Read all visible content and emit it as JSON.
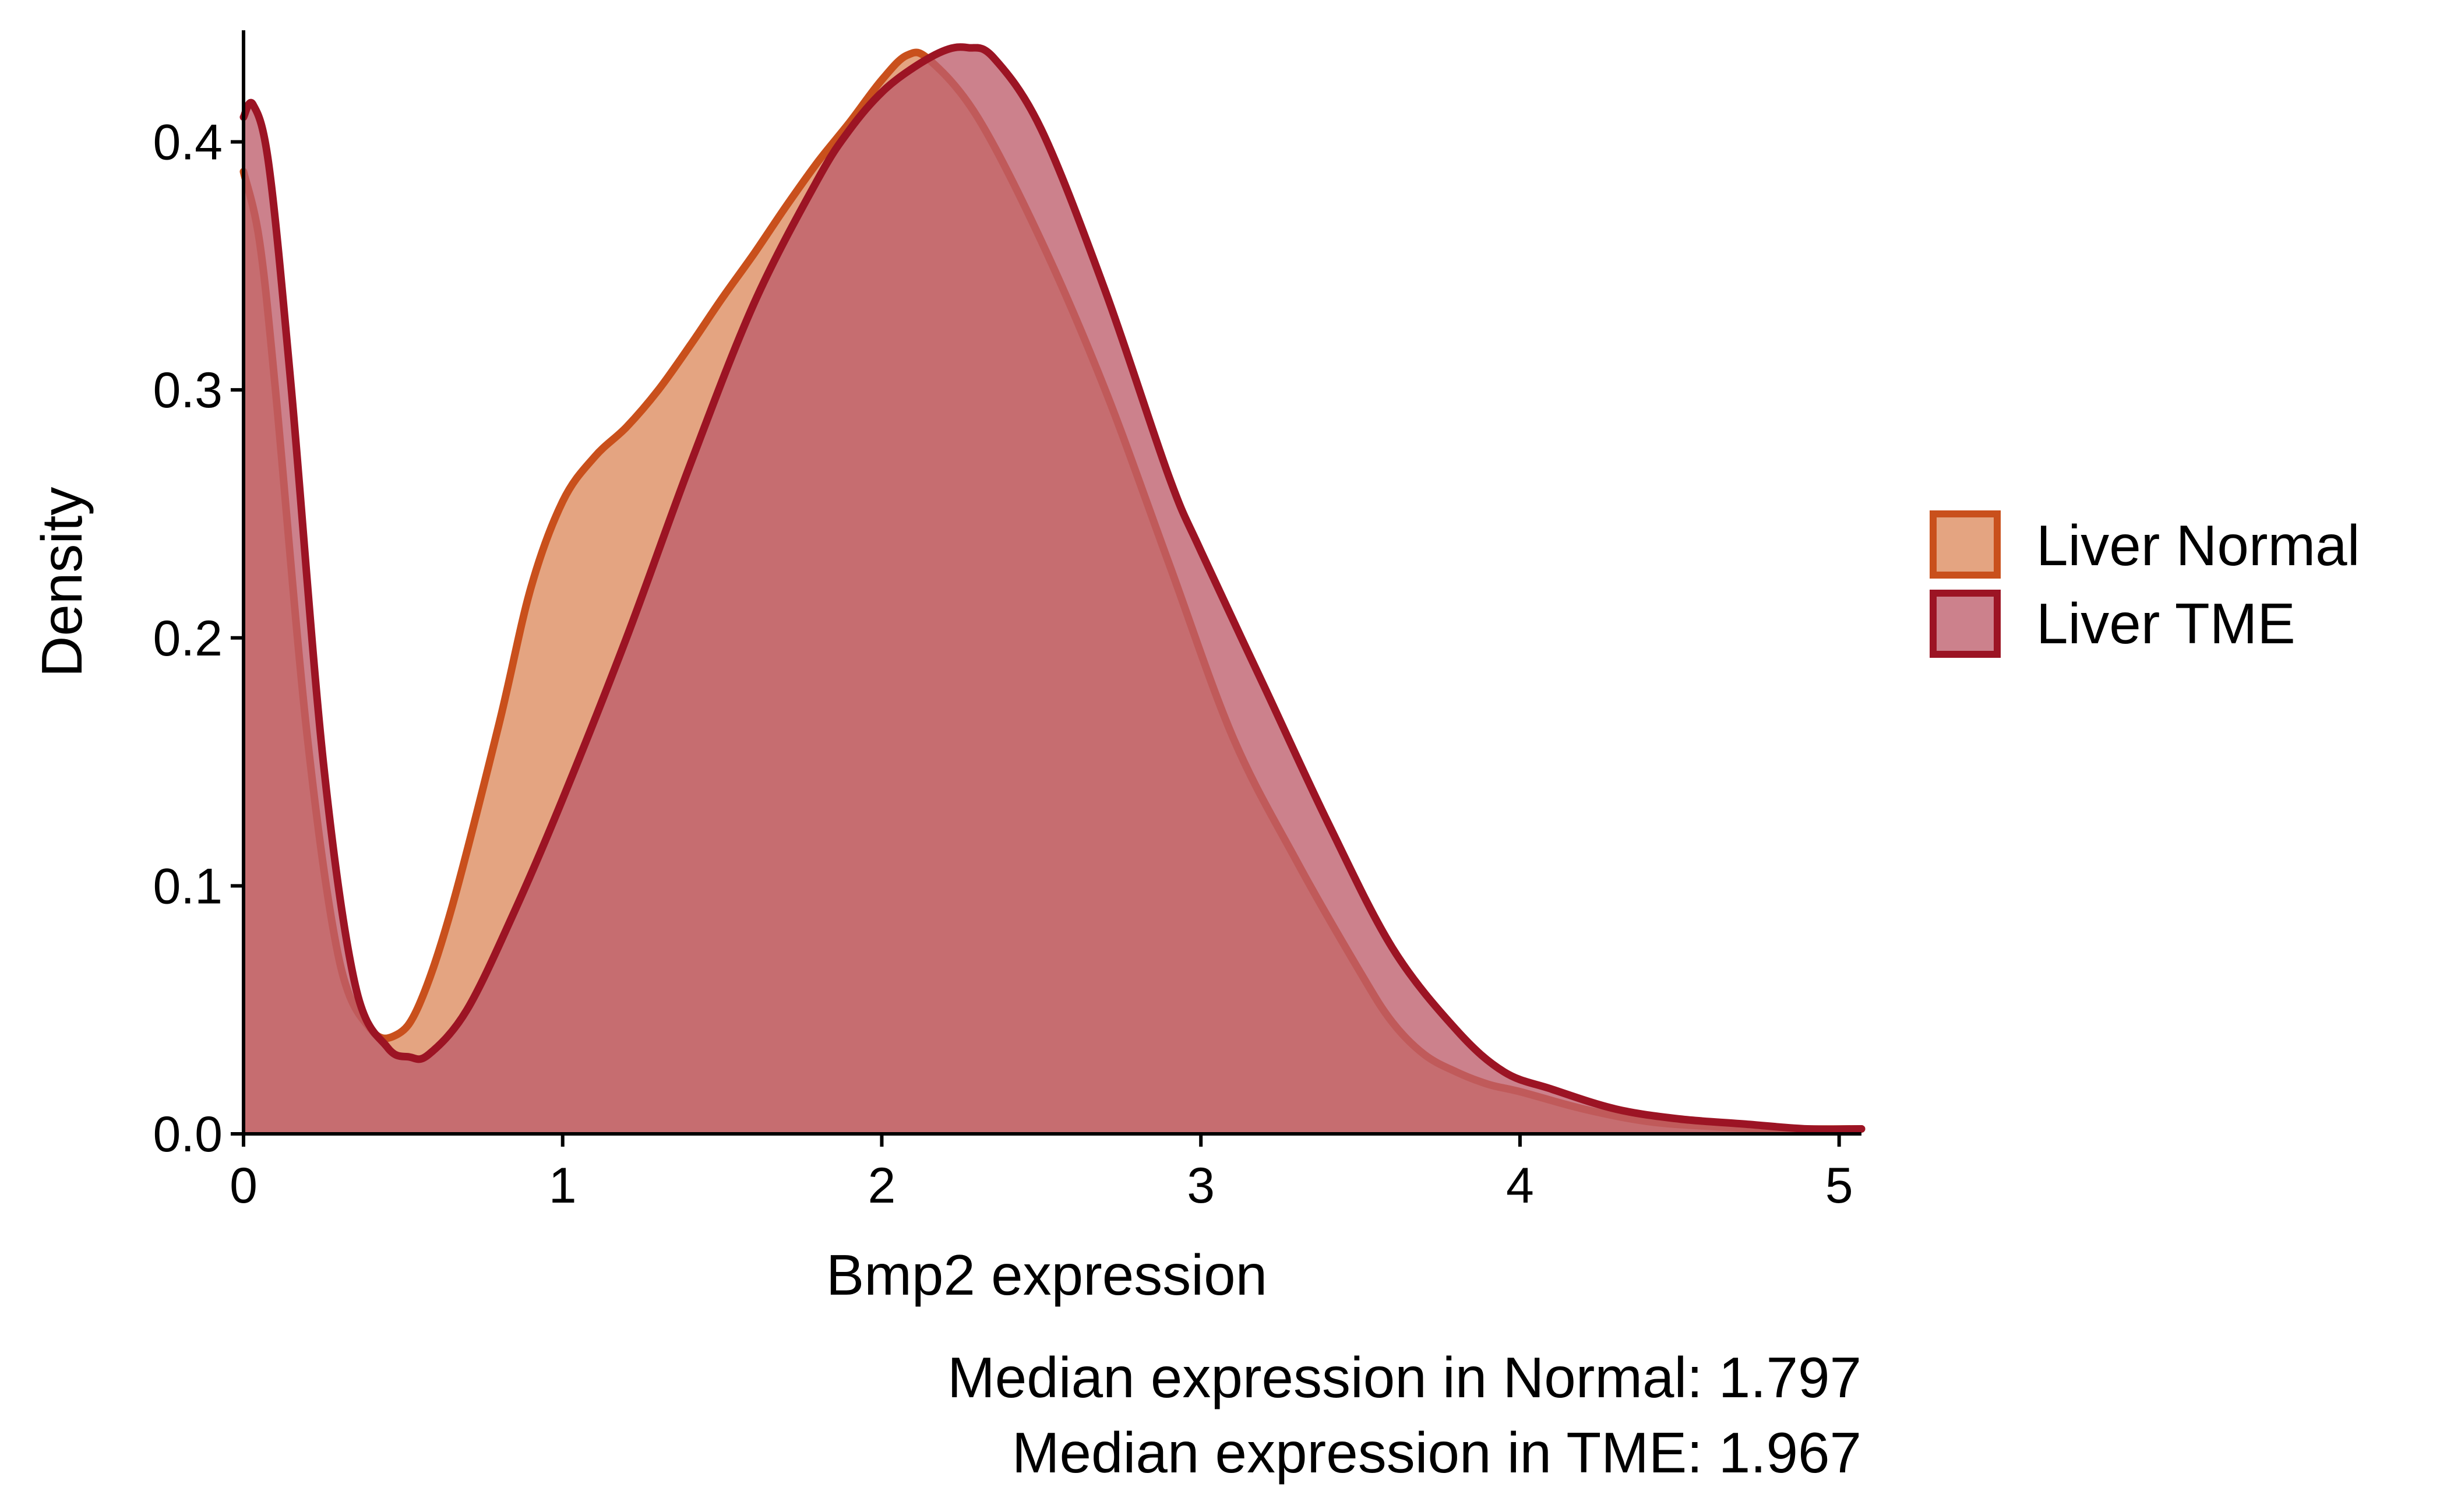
{
  "colors": {
    "normal_line": "#c9501c",
    "normal_fill": "#dc8a5d",
    "tme_line": "#9c1424",
    "tme_fill": "#be5e6b",
    "axis": "#000000"
  },
  "legend": {
    "position": "right",
    "entries": [
      {
        "label": "Liver Normal"
      },
      {
        "label": "Liver TME"
      }
    ]
  },
  "captions": {
    "normal": "Median expression in Normal: 1.797",
    "tme": "Median expression in TME: 1.967"
  },
  "chart_data": {
    "type": "area",
    "title": "",
    "xlabel": "Bmp2 expression",
    "ylabel": "Density",
    "xlim": [
      0,
      5.07
    ],
    "ylim": [
      0,
      0.445
    ],
    "grid": false,
    "x_ticks": [
      0,
      1,
      2,
      3,
      4,
      5
    ],
    "x_tick_labels": [
      "0",
      "1",
      "2",
      "3",
      "4",
      "5"
    ],
    "y_ticks": [
      0.0,
      0.1,
      0.2,
      0.3,
      0.4
    ],
    "y_tick_labels": [
      "0.0",
      "0.1",
      "0.2",
      "0.3",
      "0.4"
    ],
    "series": [
      {
        "name": "Liver Normal",
        "x": [
          0,
          0.05,
          0.1,
          0.2,
          0.3,
          0.4,
          0.48,
          0.55,
          0.65,
          0.8,
          0.9,
          1.0,
          1.1,
          1.2,
          1.3,
          1.4,
          1.5,
          1.6,
          1.7,
          1.8,
          1.9,
          2.0,
          2.08,
          2.15,
          2.3,
          2.5,
          2.7,
          2.9,
          3.1,
          3.3,
          3.5,
          3.6,
          3.7,
          3.8,
          3.9,
          4.0,
          4.2,
          4.4,
          4.6,
          4.8,
          5.07
        ],
        "y": [
          0.388,
          0.36,
          0.3,
          0.16,
          0.07,
          0.042,
          0.04,
          0.052,
          0.09,
          0.165,
          0.22,
          0.255,
          0.273,
          0.285,
          0.3,
          0.318,
          0.337,
          0.355,
          0.374,
          0.392,
          0.408,
          0.425,
          0.435,
          0.433,
          0.41,
          0.36,
          0.3,
          0.23,
          0.16,
          0.11,
          0.065,
          0.045,
          0.032,
          0.025,
          0.02,
          0.017,
          0.01,
          0.005,
          0.003,
          0.002,
          0.002
        ]
      },
      {
        "name": "Liver TME",
        "x": [
          0,
          0.03,
          0.08,
          0.15,
          0.25,
          0.35,
          0.45,
          0.52,
          0.58,
          0.7,
          0.85,
          1.0,
          1.2,
          1.4,
          1.6,
          1.8,
          1.9,
          2.0,
          2.1,
          2.2,
          2.27,
          2.35,
          2.5,
          2.7,
          2.9,
          3.0,
          3.2,
          3.4,
          3.6,
          3.8,
          3.95,
          4.1,
          4.3,
          4.5,
          4.7,
          4.9,
          5.07
        ],
        "y": [
          0.41,
          0.415,
          0.39,
          0.3,
          0.15,
          0.06,
          0.035,
          0.031,
          0.032,
          0.05,
          0.09,
          0.135,
          0.2,
          0.27,
          0.335,
          0.385,
          0.405,
          0.42,
          0.43,
          0.437,
          0.438,
          0.434,
          0.405,
          0.34,
          0.265,
          0.235,
          0.18,
          0.125,
          0.075,
          0.042,
          0.025,
          0.018,
          0.01,
          0.006,
          0.004,
          0.002,
          0.002
        ]
      }
    ]
  }
}
